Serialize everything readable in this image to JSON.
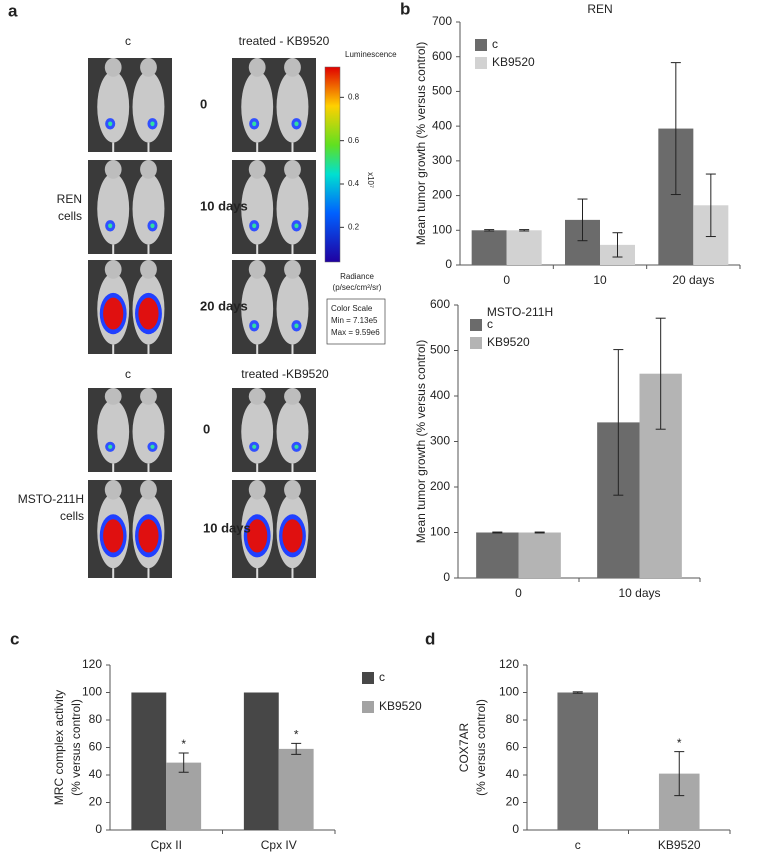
{
  "imaging": {
    "label": "a",
    "ren": {
      "header_control": "c",
      "header_treated": "treated - KB9520",
      "timepoints": [
        "0",
        "10 days",
        "20 days"
      ],
      "row_label": [
        "REN",
        "cells"
      ]
    },
    "msto": {
      "header_control": "c",
      "header_treated": "treated -KB9520",
      "timepoints": [
        "0",
        "10 days"
      ],
      "row_label": [
        "MSTO-211H",
        "cells"
      ]
    },
    "colorbar": {
      "title": "Luminescence",
      "lim": [
        0.04,
        0.94
      ],
      "ticks": [
        0.2,
        0.4,
        0.6,
        0.8
      ],
      "multiplier": "x10⁷",
      "unit": [
        "Radiance",
        "(p/sec/cm²/sr)"
      ],
      "scale_box": [
        "Color Scale",
        "Min = 7.13e5",
        "Max = 9.59e6"
      ]
    }
  },
  "chart_data": [
    {
      "type": "bar",
      "label": "b",
      "title": "REN",
      "ylabel": [
        "Mean tumor growth (% versus control)"
      ],
      "categories": [
        "0",
        "10",
        "20 days"
      ],
      "series": [
        {
          "name": "c",
          "color": "#6b6b6b",
          "values": [
            100,
            130,
            393
          ],
          "errors": [
            2,
            60,
            190
          ]
        },
        {
          "name": "KB9520",
          "color": "#d2d2d2",
          "values": [
            100,
            58,
            172
          ],
          "errors": [
            2,
            35,
            90
          ]
        }
      ],
      "ylim": [
        0,
        700
      ],
      "yticks": [
        0,
        100,
        200,
        300,
        400,
        500,
        600,
        700
      ]
    },
    {
      "type": "bar",
      "title": "MSTO-211H",
      "ylabel": [
        "Mean tumor growth (% versus control)"
      ],
      "categories": [
        "0",
        "10 days"
      ],
      "series": [
        {
          "name": "c",
          "color": "#6b6b6b",
          "values": [
            100,
            342
          ],
          "errors": [
            1,
            160
          ]
        },
        {
          "name": "KB9520",
          "color": "#b4b4b4",
          "values": [
            100,
            449
          ],
          "errors": [
            1,
            122
          ]
        }
      ],
      "ylim": [
        0,
        600
      ],
      "yticks": [
        0,
        100,
        200,
        300,
        400,
        500,
        600
      ]
    },
    {
      "type": "bar",
      "label": "c",
      "ylabel": [
        "MRC complex activity",
        "(% versus control)"
      ],
      "categories": [
        "Cpx II",
        "Cpx IV"
      ],
      "series": [
        {
          "name": "c",
          "color": "#474747",
          "values": [
            100,
            100
          ]
        },
        {
          "name": "KB9520",
          "color": "#a3a3a3",
          "values": [
            49,
            59
          ],
          "errors": [
            7,
            4
          ]
        }
      ],
      "annotations": [
        {
          "text": "*",
          "series": 1,
          "index": 0
        },
        {
          "text": "*",
          "series": 1,
          "index": 1
        }
      ],
      "ylim": [
        0,
        120
      ],
      "yticks": [
        0,
        20,
        40,
        60,
        80,
        100,
        120
      ]
    },
    {
      "type": "bar",
      "label": "d",
      "ylabel": [
        "COX7AR",
        "(% versus control)"
      ],
      "categories": [
        "c",
        "KB9520"
      ],
      "values": [
        100,
        41
      ],
      "errors": [
        0.5,
        16
      ],
      "colors": [
        "#6e6e6e",
        "#a8a8a8"
      ],
      "annotations": [
        {
          "text": "*",
          "index": 1
        }
      ],
      "ylim": [
        0,
        120
      ],
      "yticks": [
        0,
        20,
        40,
        60,
        80,
        100,
        120
      ]
    }
  ]
}
